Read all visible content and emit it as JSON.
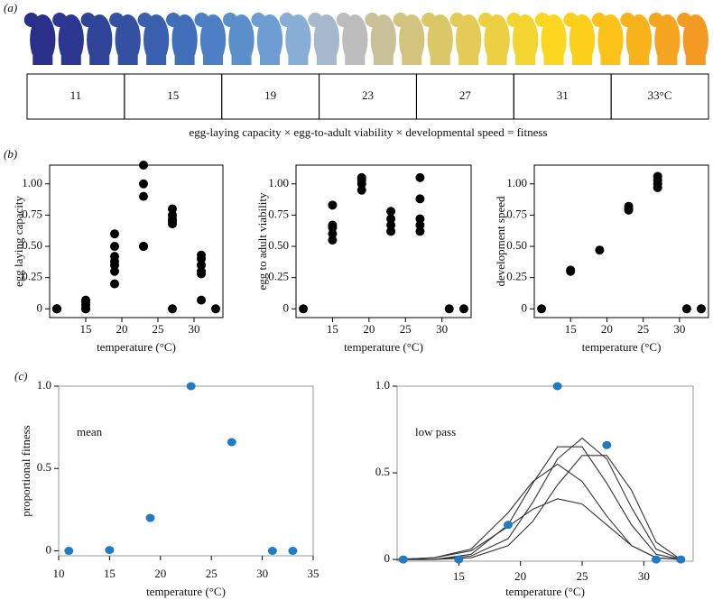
{
  "panel_labels": [
    "(a)",
    "(b)",
    "(c)"
  ],
  "temperature_strip": {
    "labels": [
      "11",
      "15",
      "19",
      "23",
      "27",
      "31",
      "33°C"
    ],
    "caption": "egg-laying capacity × egg-to-adult viability × developmental speed = fitness"
  },
  "chart_data": [
    {
      "type": "scatter",
      "x_label": "temperature (°C)",
      "y_label": "egg laying capacity",
      "color": "#000000",
      "x": [
        11,
        11,
        11,
        15,
        15,
        15,
        15,
        15,
        19,
        19,
        19,
        19,
        19,
        19,
        19,
        23,
        23,
        23,
        23,
        23,
        27,
        27,
        27,
        27,
        27,
        27,
        31,
        31,
        31,
        31,
        31,
        31,
        33
      ],
      "values": [
        0,
        0,
        0,
        0,
        0.03,
        0.05,
        0.07,
        0,
        0.2,
        0.3,
        0.35,
        0.38,
        0.42,
        0.5,
        0.6,
        0.5,
        0.5,
        0.9,
        1.0,
        1.15,
        0,
        0.68,
        0.7,
        0.72,
        0.75,
        0.8,
        0.07,
        0.28,
        0.3,
        0.35,
        0.4,
        0.43,
        0
      ],
      "xlim": [
        10,
        34
      ],
      "xticks": [
        15,
        20,
        25,
        30
      ],
      "ylim": [
        -0.07,
        1.15
      ],
      "yticks": [
        0,
        0.25,
        {
          "value": 0.5,
          "label": "0.50"
        },
        0.75,
        {
          "value": 1,
          "label": "1.00"
        }
      ]
    },
    {
      "type": "scatter",
      "x_label": "temperature (°C)",
      "y_label": "egg to adult viability",
      "color": "#000000",
      "x": [
        11,
        15,
        15,
        15,
        15,
        15,
        19,
        19,
        19,
        19,
        23,
        23,
        23,
        23,
        27,
        27,
        27,
        27,
        27,
        31,
        33
      ],
      "values": [
        0,
        0.55,
        0.6,
        0.65,
        0.67,
        0.83,
        0.95,
        1.0,
        1.03,
        1.05,
        0.62,
        0.67,
        0.72,
        0.78,
        0.62,
        0.67,
        0.72,
        0.88,
        1.05,
        0,
        0
      ],
      "xlim": [
        10,
        34
      ],
      "xticks": [
        15,
        20,
        25,
        30
      ],
      "ylim": [
        -0.07,
        1.15
      ],
      "yticks": [
        0,
        0.25,
        {
          "value": 0.5,
          "label": "0.50"
        },
        0.75,
        {
          "value": 1,
          "label": "1.00"
        }
      ]
    },
    {
      "type": "scatter",
      "x_label": "temperature (°C)",
      "y_label": "development speed",
      "color": "#000000",
      "x": [
        11,
        15,
        15,
        19,
        23,
        23,
        23,
        27,
        27,
        27,
        27,
        31,
        33
      ],
      "values": [
        0,
        0.3,
        0.31,
        0.47,
        0.79,
        0.8,
        0.82,
        0.97,
        1.0,
        1.03,
        1.06,
        0,
        0
      ],
      "xlim": [
        10,
        34
      ],
      "xticks": [
        15,
        20,
        25,
        30
      ],
      "ylim": [
        -0.07,
        1.15
      ],
      "yticks": [
        0,
        0.25,
        {
          "value": 0.5,
          "label": "0.50"
        },
        0.75,
        {
          "value": 1,
          "label": "1.00"
        }
      ]
    },
    {
      "type": "scatter",
      "annotation": "mean",
      "x_label": "temperature (°C)",
      "y_label": "proportional fitness",
      "color": "#1f7bc4",
      "x": [
        11,
        15,
        19,
        23,
        27,
        31,
        33
      ],
      "values": [
        0,
        0.005,
        0.2,
        1.0,
        0.66,
        0,
        0
      ],
      "xlim": [
        10,
        35
      ],
      "xticks": [
        10,
        15,
        20,
        25,
        30,
        35
      ],
      "ylim": [
        -0.03,
        1.0
      ],
      "yticks": [
        0,
        0.5,
        {
          "value": 1,
          "label": "1.0"
        }
      ]
    },
    {
      "type": "scatter",
      "annotation": "low pass",
      "x_label": "temperature (°C)",
      "color": "#1f7bc4",
      "x": [
        10.5,
        15,
        19,
        23,
        27,
        31,
        33
      ],
      "values": [
        0,
        0,
        0.2,
        1.0,
        0.66,
        0,
        0
      ],
      "curve_color": "#333333",
      "curve_x": [
        10,
        13,
        16,
        19,
        21,
        23,
        25,
        27,
        29,
        31,
        33
      ],
      "curves": [
        [
          0,
          0,
          0.03,
          0.2,
          0.44,
          0.65,
          0.65,
          0.44,
          0.2,
          0.03,
          0
        ],
        [
          0,
          0,
          0.02,
          0.12,
          0.33,
          0.58,
          0.7,
          0.58,
          0.3,
          0.06,
          0
        ],
        [
          0,
          0.01,
          0.06,
          0.27,
          0.45,
          0.55,
          0.45,
          0.25,
          0.08,
          0.01,
          0
        ],
        [
          0,
          0,
          0.01,
          0.08,
          0.22,
          0.43,
          0.6,
          0.6,
          0.4,
          0.1,
          0
        ],
        [
          0,
          0.01,
          0.05,
          0.19,
          0.29,
          0.35,
          0.32,
          0.2,
          0.08,
          0.01,
          0
        ]
      ],
      "xlim": [
        10,
        34
      ],
      "xticks": [
        15,
        20,
        25,
        30
      ],
      "ylim": [
        -0.01,
        1.0
      ],
      "yticks": [
        0,
        0.5,
        {
          "value": 1,
          "label": "1.0"
        }
      ]
    }
  ]
}
